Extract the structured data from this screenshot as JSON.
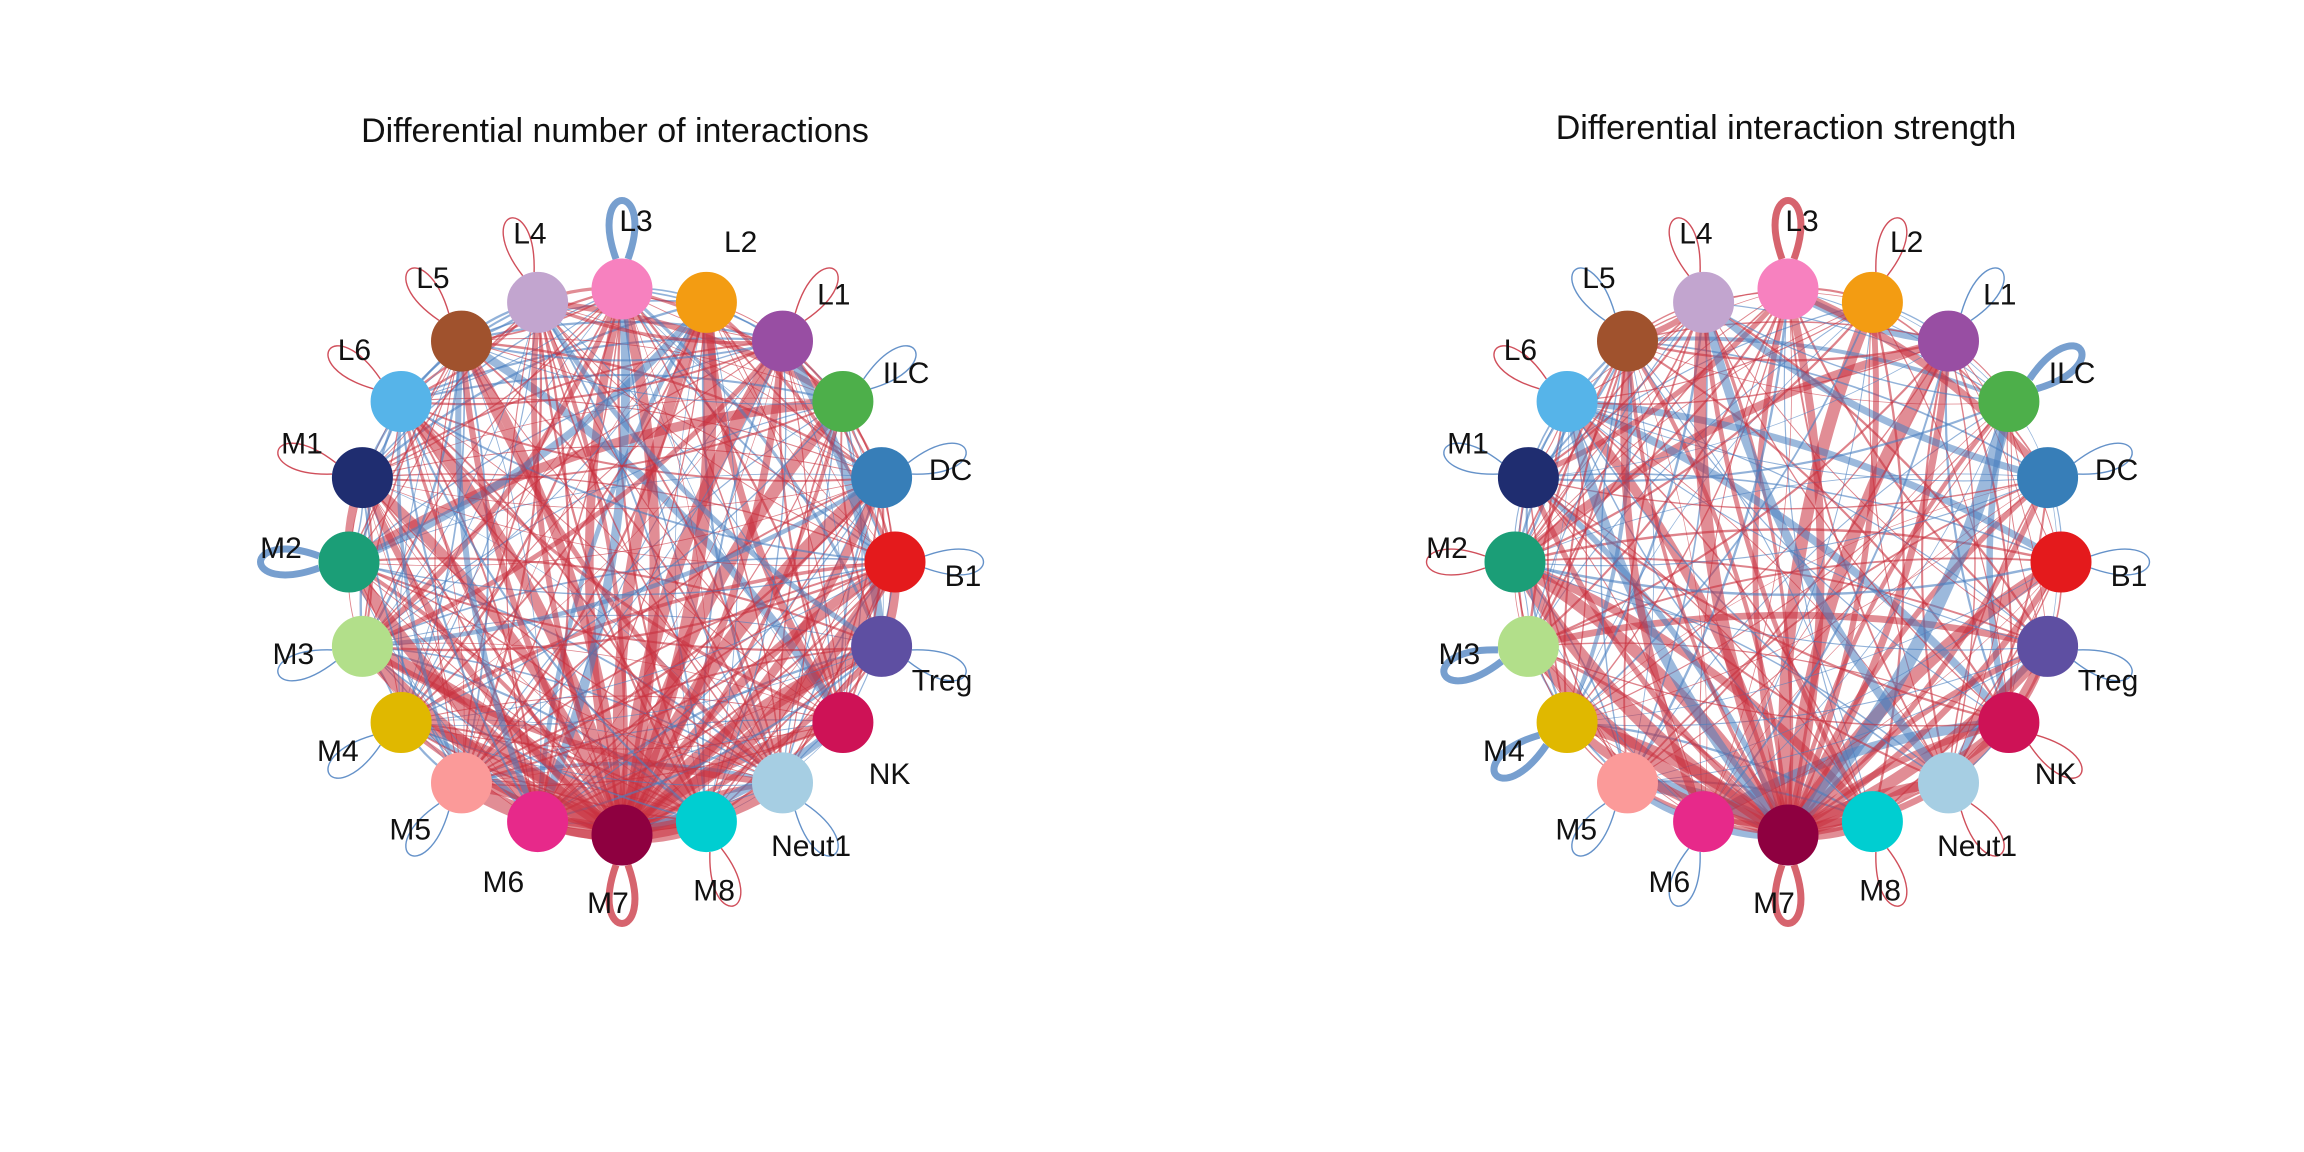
{
  "figure": {
    "panels": [
      {
        "id": "left",
        "title": "Differential number of interactions",
        "center_node": "M7",
        "self_loops": {
          "L1": "increase",
          "ILC": "decrease",
          "DC": "decrease",
          "B1": "decrease",
          "Treg": "decrease",
          "NK": "none",
          "Neut1": "decrease",
          "M8": "increase",
          "M7": "increase-strong",
          "M6": "none",
          "M5": "decrease",
          "M4": "decrease",
          "M3": "decrease",
          "M2": "decrease-strong",
          "M1": "increase",
          "L6": "increase",
          "L5": "increase",
          "L4": "increase",
          "L3": "decrease-strong",
          "L2": "none"
        }
      },
      {
        "id": "right",
        "title": "Differential interaction strength",
        "center_node": "M7",
        "self_loops": {
          "L1": "decrease",
          "ILC": "decrease-strong",
          "DC": "decrease",
          "B1": "decrease",
          "Treg": "decrease",
          "NK": "increase",
          "Neut1": "increase",
          "M8": "increase",
          "M7": "increase-strong",
          "M6": "decrease",
          "M5": "decrease",
          "M4": "decrease-strong",
          "M3": "decrease-strong",
          "M2": "increase",
          "M1": "decrease",
          "L6": "increase",
          "L5": "decrease",
          "L4": "increase",
          "L3": "increase-strong",
          "L2": "increase"
        }
      }
    ],
    "nodes": [
      {
        "name": "L3",
        "color": "#F781BF"
      },
      {
        "name": "L2",
        "color": "#F39C12"
      },
      {
        "name": "L1",
        "color": "#984EA3"
      },
      {
        "name": "ILC",
        "color": "#4DAF4A"
      },
      {
        "name": "DC",
        "color": "#377EB8"
      },
      {
        "name": "B1",
        "color": "#E41A1C"
      },
      {
        "name": "Treg",
        "color": "#5E4FA2"
      },
      {
        "name": "NK",
        "color": "#CE1256"
      },
      {
        "name": "Neut1",
        "color": "#A6CEE3"
      },
      {
        "name": "M8",
        "color": "#00CED1"
      },
      {
        "name": "M7",
        "color": "#8E0040"
      },
      {
        "name": "M6",
        "color": "#E7298A"
      },
      {
        "name": "M5",
        "color": "#FB9A99"
      },
      {
        "name": "M4",
        "color": "#E0B800"
      },
      {
        "name": "M3",
        "color": "#B2DF8A"
      },
      {
        "name": "M2",
        "color": "#1B9E77"
      },
      {
        "name": "M1",
        "color": "#1F2D70"
      },
      {
        "name": "L6",
        "color": "#56B4E9"
      },
      {
        "name": "L5",
        "color": "#A0522D"
      },
      {
        "name": "L4",
        "color": "#C2A5CF"
      }
    ],
    "edge_colors": {
      "increase": "#C8303E",
      "decrease": "#4A7FBF"
    }
  }
}
